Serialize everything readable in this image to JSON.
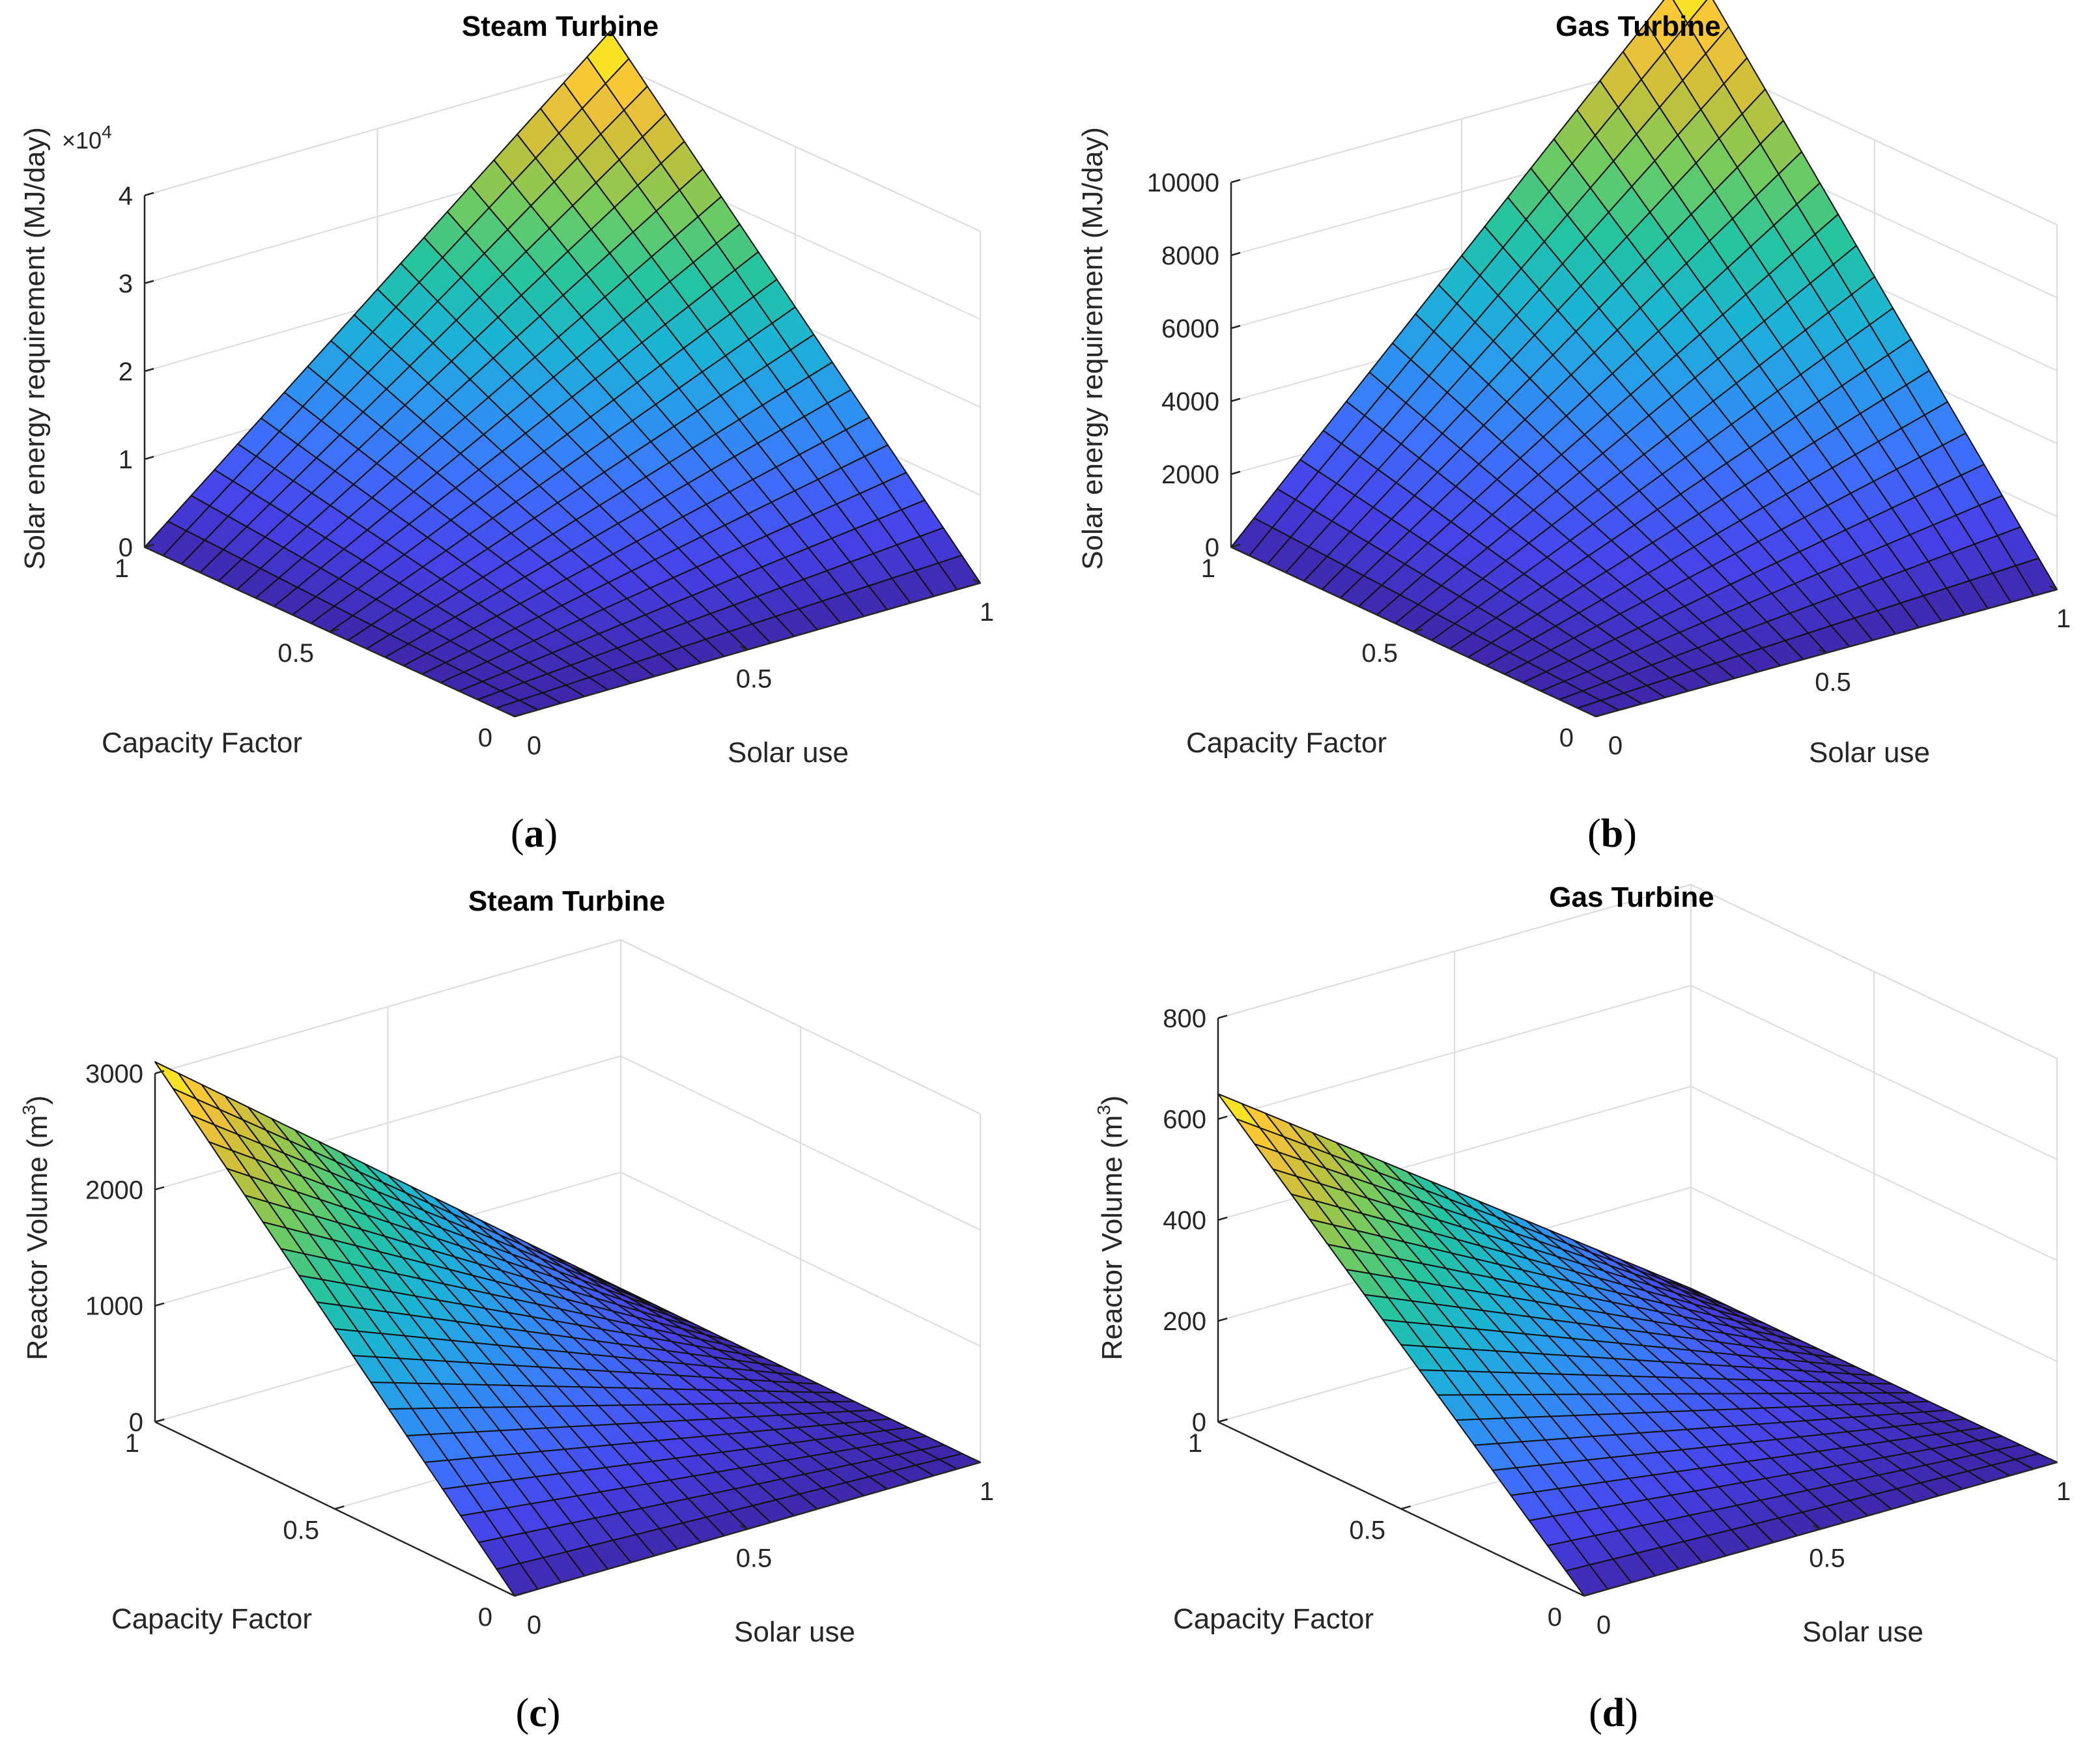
{
  "chart_data": [
    {
      "id": "a",
      "type": "surface",
      "caption": "a",
      "title": "Steam Turbine",
      "xlabel": "Solar use",
      "ylabel": "Capacity Factor",
      "zlabel": "Solar energy requirement (MJ/day)",
      "z_exponent": "4",
      "z_multiplier": "×10",
      "x_range": [
        0,
        1
      ],
      "y_range": [
        0,
        1
      ],
      "z_range": [
        0,
        4
      ],
      "z_max_value": 4.35,
      "surface_formula": "z = z_max * x * y",
      "x_ticks": [
        "0",
        "0.5",
        "1"
      ],
      "y_ticks": [
        "0",
        "0.5",
        "1"
      ],
      "z_ticks": [
        "0",
        "1",
        "2",
        "3",
        "4"
      ],
      "z_tick_values": [
        0,
        1,
        2,
        3,
        4
      ]
    },
    {
      "id": "b",
      "type": "surface",
      "caption": "b",
      "title": "Gas Turbine",
      "xlabel": "Solar use",
      "ylabel": "Capacity Factor",
      "zlabel": "Solar energy requirement (MJ/day)",
      "x_range": [
        0,
        1
      ],
      "y_range": [
        0,
        1
      ],
      "z_range": [
        0,
        10000
      ],
      "z_max_value": 12500,
      "surface_formula": "z = z_max * x * y",
      "x_ticks": [
        "0",
        "0.5",
        "1"
      ],
      "y_ticks": [
        "0",
        "0.5",
        "1"
      ],
      "z_ticks": [
        "0",
        "2000",
        "4000",
        "6000",
        "8000",
        "10000"
      ],
      "z_tick_values": [
        0,
        2000,
        4000,
        6000,
        8000,
        10000
      ]
    },
    {
      "id": "c",
      "type": "surface",
      "caption": "c",
      "title": "Steam Turbine",
      "xlabel": "Solar use",
      "ylabel": "Capacity Factor",
      "zlabel": "Reactor Volume (m",
      "zlabel_sup": "3",
      "zlabel_end": ")",
      "x_range": [
        0,
        1
      ],
      "y_range": [
        0,
        1
      ],
      "z_range": [
        0,
        3000
      ],
      "z_max_value": 3100,
      "surface_formula": "z = z_max * (1 - x) * y",
      "x_ticks": [
        "0",
        "0.5",
        "1"
      ],
      "y_ticks": [
        "0",
        "0.5",
        "1"
      ],
      "z_ticks": [
        "0",
        "1000",
        "2000",
        "3000"
      ],
      "z_tick_values": [
        0,
        1000,
        2000,
        3000
      ]
    },
    {
      "id": "d",
      "type": "surface",
      "caption": "d",
      "title": "Gas Turbine",
      "xlabel": "Solar use",
      "ylabel": "Capacity Factor",
      "zlabel": "Reactor Volume (m",
      "zlabel_sup": "3",
      "zlabel_end": ")",
      "x_range": [
        0,
        1
      ],
      "y_range": [
        0,
        1
      ],
      "z_range": [
        0,
        800
      ],
      "z_max_value": 650,
      "surface_formula": "z = z_max * (1 - x) * y",
      "x_ticks": [
        "0",
        "0.5",
        "1"
      ],
      "y_ticks": [
        "0",
        "0.5",
        "1"
      ],
      "z_ticks": [
        "0",
        "200",
        "400",
        "600",
        "800"
      ],
      "z_tick_values": [
        0,
        200,
        400,
        600,
        800
      ]
    }
  ],
  "colormap": [
    "#3e26a8",
    "#4742e9",
    "#3f6ffd",
    "#2c97ef",
    "#1cb4d4",
    "#25c4a0",
    "#6fcb61",
    "#c3c03b",
    "#f9c13a",
    "#f9fb15"
  ]
}
